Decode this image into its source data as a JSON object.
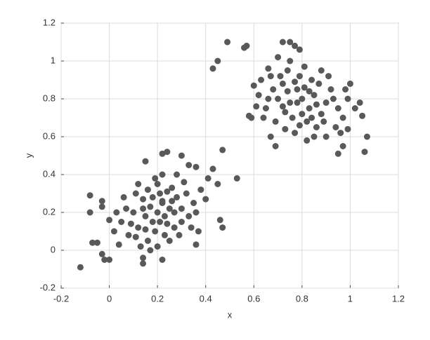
{
  "chart_data": {
    "type": "scatter",
    "x_label": "x",
    "y_label": "y",
    "color": "#595959",
    "grid": true,
    "xlim": [
      -0.2,
      1.2
    ],
    "ylim": [
      -0.2,
      1.2
    ],
    "xticks": [
      -0.2,
      0,
      0.2,
      0.4,
      0.6,
      0.8,
      1,
      1.2
    ],
    "yticks": [
      -0.2,
      0,
      0.2,
      0.4,
      0.6,
      0.8,
      1,
      1.2
    ],
    "series": [
      {
        "x": [
          0.49,
          0.56,
          0.57,
          0.43,
          0.45,
          0.47,
          0.53,
          1.07,
          1.06,
          0.58,
          0.59,
          0.67,
          0.69,
          0.75,
          0.72,
          0.77,
          0.79,
          1.05,
          1.04,
          0.97,
          0.95,
          0.99,
          -0.12,
          -0.08,
          -0.08,
          -0.07,
          -0.05,
          -0.03,
          -0.02,
          0.0,
          0.14,
          0.14,
          0.22,
          0.24,
          0.22,
          0.3,
          0.33,
          0.36,
          0.43,
          0.45,
          0.46,
          0.47,
          0.36,
          0.15,
          -0.03,
          -0.03,
          0.2,
          0.22,
          0.18,
          0.25,
          0.15,
          0.28,
          0.12,
          0.21,
          0.17,
          0.24,
          0.3,
          0.1,
          0.19,
          0.26,
          0.14,
          0.32,
          0.08,
          0.23,
          0.16,
          0.27,
          0.05,
          0.35,
          0.2,
          0.11,
          0.29,
          0.13,
          0.22,
          0.38,
          0.02,
          0.33,
          0.18,
          0.25,
          0.07,
          0.31,
          0.15,
          0.21,
          0.26,
          0.09,
          0.36,
          0.19,
          0.04,
          0.28,
          0.12,
          0.24,
          0.17,
          0.4,
          0.0,
          0.34,
          0.06,
          0.23,
          0.41,
          0.16,
          0.3,
          0.11,
          0.27,
          0.2,
          0.37,
          0.03,
          0.14,
          0.22,
          0.8,
          0.78,
          0.83,
          0.75,
          0.85,
          0.72,
          0.88,
          0.79,
          0.82,
          0.7,
          0.9,
          0.76,
          0.84,
          0.68,
          0.92,
          0.74,
          0.86,
          0.65,
          0.95,
          0.81,
          0.77,
          0.63,
          0.97,
          0.73,
          0.87,
          0.69,
          0.91,
          0.8,
          0.66,
          0.94,
          0.78,
          0.83,
          0.71,
          0.89,
          0.62,
          0.99,
          0.75,
          0.85,
          0.6,
          1.0,
          0.79,
          0.72,
          0.93,
          0.67,
          0.88,
          0.81,
          0.64,
          0.96,
          0.74,
          0.86,
          0.7,
          0.82,
          0.98,
          0.61,
          0.84,
          0.77,
          0.9,
          0.66,
          1.02,
          0.73
        ],
        "y": [
          1.1,
          1.07,
          1.08,
          0.96,
          1.0,
          0.53,
          0.38,
          0.6,
          0.52,
          0.71,
          0.7,
          0.6,
          0.55,
          1.1,
          1.1,
          1.08,
          1.06,
          0.71,
          0.78,
          0.55,
          0.51,
          0.64,
          -0.09,
          0.29,
          0.2,
          0.04,
          0.04,
          -0.02,
          -0.05,
          -0.05,
          -0.07,
          -0.04,
          -0.05,
          0.52,
          0.51,
          0.5,
          0.45,
          0.44,
          0.43,
          0.35,
          0.16,
          0.12,
          0.03,
          0.47,
          0.23,
          0.26,
          0.2,
          0.25,
          0.15,
          0.22,
          0.18,
          0.28,
          0.12,
          0.3,
          0.23,
          0.14,
          0.22,
          0.2,
          0.1,
          0.33,
          0.27,
          0.3,
          0.08,
          0.18,
          0.05,
          0.12,
          0.15,
          0.25,
          0.35,
          0.3,
          0.08,
          0.02,
          0.4,
          0.32,
          0.1,
          0.18,
          0.28,
          0.05,
          0.22,
          0.36,
          0.11,
          0.15,
          0.26,
          0.14,
          0.2,
          0.38,
          0.03,
          0.4,
          0.35,
          0.31,
          0.0,
          0.27,
          0.16,
          0.12,
          0.28,
          0.08,
          0.38,
          0.32,
          0.15,
          0.07,
          0.2,
          0.02,
          0.1,
          0.2,
          0.22,
          0.26,
          0.8,
          0.85,
          0.75,
          0.78,
          0.82,
          0.88,
          0.72,
          0.92,
          0.68,
          0.8,
          0.78,
          0.7,
          0.9,
          0.85,
          0.85,
          0.95,
          0.65,
          0.75,
          0.75,
          0.97,
          0.62,
          0.9,
          0.7,
          0.73,
          0.88,
          0.68,
          0.92,
          0.72,
          0.96,
          0.65,
          0.78,
          0.84,
          0.92,
          0.68,
          0.82,
          0.8,
          1.0,
          0.6,
          0.87,
          0.88,
          0.66,
          0.76,
          0.8,
          0.92,
          0.95,
          0.86,
          0.7,
          0.62,
          0.84,
          0.77,
          1.02,
          0.58,
          0.85,
          0.76,
          0.7,
          0.89,
          0.6,
          0.8,
          0.75,
          0.64
        ]
      }
    ]
  }
}
